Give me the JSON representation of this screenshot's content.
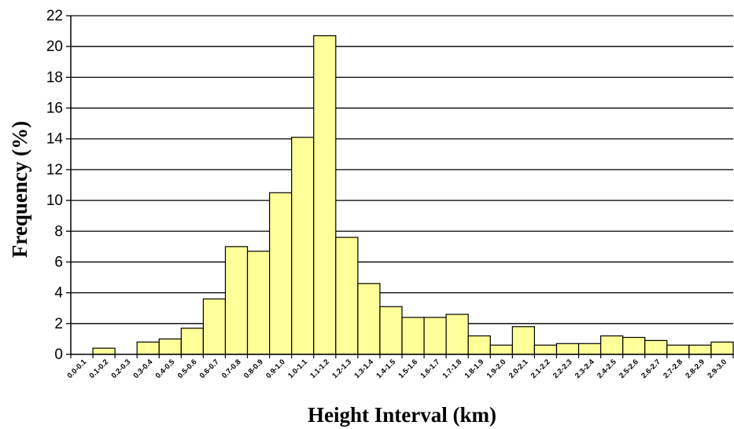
{
  "chart_data": {
    "type": "bar",
    "title": "",
    "xlabel": "Height Interval (km)",
    "ylabel": "Frequency (%)",
    "ylim": [
      0,
      22
    ],
    "ytick_step": 2,
    "grid": "horizontal",
    "bar_color": "#ffff99",
    "bar_edge_color": "#000000",
    "categories": [
      "0.0-0.1",
      "0.1-0.2",
      "0.2-0.3",
      "0.3-0.4",
      "0.4-0.5",
      "0.5-0.6",
      "0.6-0.7",
      "0.7-0.8",
      "0.8-0.9",
      "0.9-1.0",
      "1.0-1.1",
      "1.1-1.2",
      "1.2-1.3",
      "1.3-1.4",
      "1.4-1.5",
      "1.5-1.6",
      "1.6-1.7",
      "1.7-1.8",
      "1.8-1.9",
      "1.9-2.0",
      "2.0-2.1",
      "2.1-2.2",
      "2.2-2.3",
      "2.3-2.4",
      "2.4-2.5",
      "2.5-2.6",
      "2.6-2.7",
      "2.7-2.8",
      "2.8-2.9",
      "2.9-3.0"
    ],
    "values": [
      0,
      0.4,
      0,
      0.8,
      1.0,
      1.7,
      3.6,
      7.0,
      6.7,
      10.5,
      14.1,
      20.7,
      7.6,
      4.6,
      3.1,
      2.4,
      2.4,
      2.6,
      1.2,
      0.6,
      1.8,
      0.6,
      0.7,
      0.7,
      1.2,
      1.1,
      0.9,
      0.6,
      0.6,
      0.8
    ]
  }
}
